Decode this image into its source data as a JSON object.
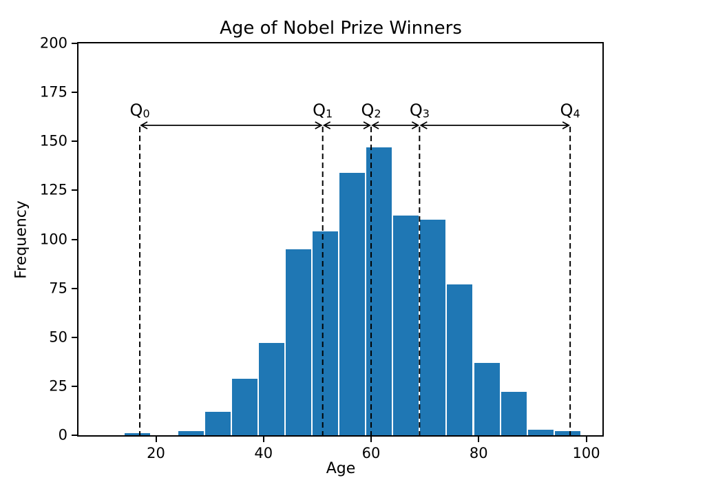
{
  "chart_data": {
    "type": "bar",
    "subtype": "histogram",
    "title": "Age of Nobel Prize Winners",
    "xlabel": "Age",
    "ylabel": "Frequency",
    "bar_color": "#1f77b4",
    "line_color": "#000000",
    "bin_edges": [
      14,
      19,
      24,
      29,
      34,
      39,
      44,
      49,
      54,
      59,
      64,
      69,
      74,
      79,
      84,
      89,
      94,
      99
    ],
    "counts": [
      1,
      0,
      2,
      12,
      29,
      47,
      95,
      104,
      134,
      147,
      112,
      110,
      77,
      37,
      22,
      3,
      2
    ],
    "xlim": [
      5.6,
      103.0
    ],
    "ylim": [
      0,
      200
    ],
    "xticks": [
      "20",
      "40",
      "60",
      "80",
      "100"
    ],
    "xtick_values": [
      20,
      40,
      60,
      80,
      100
    ],
    "yticks": [
      "0",
      "25",
      "50",
      "75",
      "100",
      "125",
      "150",
      "175",
      "200"
    ],
    "ytick_values": [
      0,
      25,
      50,
      75,
      100,
      125,
      150,
      175,
      200
    ],
    "grid": false,
    "legend": null,
    "quartile_markers": [
      {
        "label": "Q",
        "sub": "0",
        "age": 17
      },
      {
        "label": "Q",
        "sub": "1",
        "age": 51
      },
      {
        "label": "Q",
        "sub": "2",
        "age": 60
      },
      {
        "label": "Q",
        "sub": "3",
        "age": 69
      },
      {
        "label": "Q",
        "sub": "4",
        "age": 97
      }
    ],
    "quartile_line_style": "dashed",
    "arrows_between_consecutive_quartiles": true
  }
}
